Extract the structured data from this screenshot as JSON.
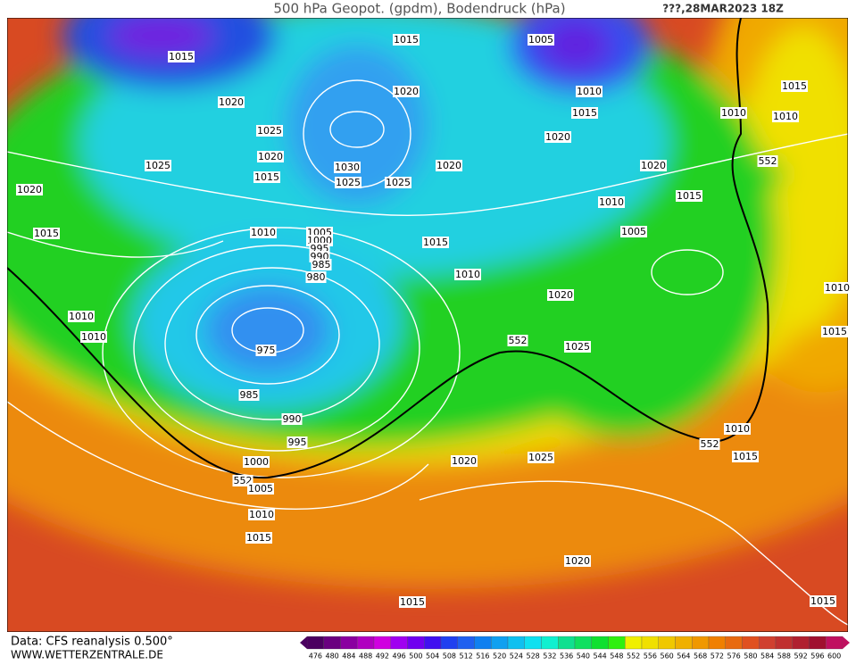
{
  "header": {
    "title": "500 hPa Geopot. (gpdm), Bodendruck (hPa)",
    "date": "???,28MAR2023 18Z"
  },
  "isobar_labels": [
    1015,
    1005,
    1015,
    1020,
    1010,
    1020,
    1015,
    1010,
    1015,
    1010,
    1025,
    1020,
    1020,
    1025,
    1030,
    1020,
    1020,
    552,
    1015,
    1025,
    1025,
    1020,
    1015,
    1010,
    1015,
    1010,
    1005,
    1000,
    995,
    990,
    985,
    1015,
    1005,
    980,
    1010,
    1020,
    1010,
    1010,
    1010,
    552,
    1025,
    1015,
    975,
    985,
    990,
    995,
    552,
    1010,
    1015,
    1020,
    1025,
    1000,
    552,
    1005,
    1010,
    1015,
    1020,
    1015,
    1015
  ],
  "footer": {
    "source": "Data: CFS reanalysis 0.500°",
    "site": "WWW.WETTERZENTRALE.DE"
  },
  "legend": {
    "levels": [
      476,
      480,
      484,
      488,
      492,
      496,
      500,
      504,
      508,
      512,
      516,
      520,
      524,
      528,
      532,
      536,
      540,
      544,
      548,
      552,
      556,
      560,
      564,
      568,
      572,
      576,
      580,
      584,
      588,
      592,
      596,
      600
    ],
    "colors": [
      "#4b0060",
      "#6a0080",
      "#8a00a0",
      "#b000c0",
      "#d000e0",
      "#a000f0",
      "#7000f0",
      "#4010f0",
      "#2040f0",
      "#2060f0",
      "#1080f0",
      "#10a0f0",
      "#10c0f0",
      "#10e0f0",
      "#10f0d0",
      "#10e090",
      "#10e060",
      "#10e030",
      "#30f010",
      "#f0f000",
      "#f0e000",
      "#f0c800",
      "#f0b000",
      "#f09800",
      "#f08000",
      "#e86a10",
      "#e05020",
      "#d04030",
      "#c03030",
      "#b02030",
      "#a01030",
      "#c01060"
    ]
  }
}
